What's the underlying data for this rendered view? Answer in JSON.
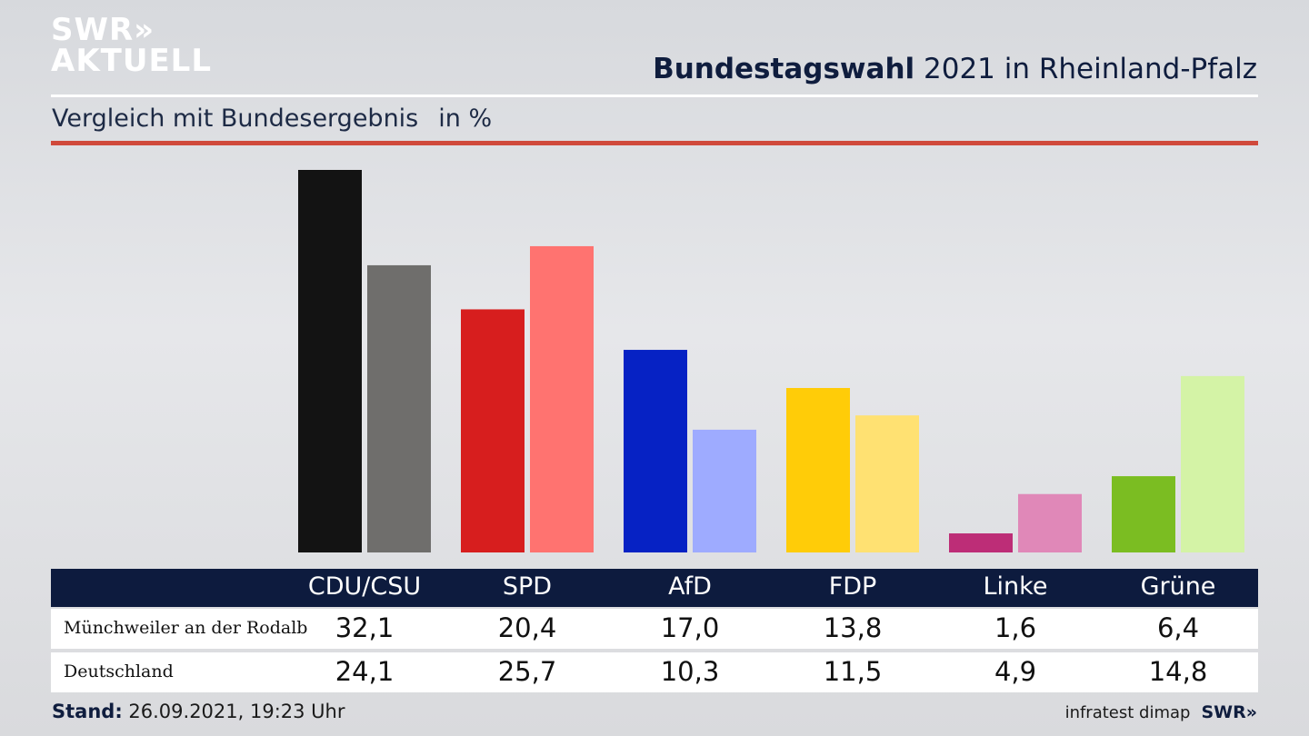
{
  "branding": {
    "logo_line1": "SWR»",
    "logo_line2": "AKTUELL",
    "footer_logo": "SWR»"
  },
  "header": {
    "title_bold": "Bundestagswahl",
    "title_rest": " 2021 in Rheinland-Pfalz",
    "subtitle": "Vergleich mit Bundesergebnis",
    "unit": "in %"
  },
  "colors": {
    "accent_red": "#d0493b",
    "header_navy": "#0d1b3e"
  },
  "chart_data": {
    "type": "bar",
    "categories": [
      "CDU/CSU",
      "SPD",
      "AfD",
      "FDP",
      "Linke",
      "Grüne"
    ],
    "series": [
      {
        "name": "Münchweiler an der Rodalb",
        "values": [
          32.1,
          20.4,
          17.0,
          13.8,
          1.6,
          6.4
        ],
        "colors": [
          "#131313",
          "#d71e1e",
          "#0622c4",
          "#ffcc08",
          "#bd2d77",
          "#7bbd22"
        ]
      },
      {
        "name": "Deutschland",
        "values": [
          24.1,
          25.7,
          10.3,
          11.5,
          4.9,
          14.8
        ],
        "colors": [
          "#6f6e6c",
          "#ff7370",
          "#9eabff",
          "#ffe172",
          "#e088b8",
          "#d4f3a6"
        ]
      }
    ],
    "ylim": [
      0,
      32.1
    ],
    "grid": false,
    "legend": "table-below"
  },
  "table": {
    "headers": [
      "CDU/CSU",
      "SPD",
      "AfD",
      "FDP",
      "Linke",
      "Grüne"
    ],
    "rows": [
      {
        "label": "Münchweiler an der Rodalb",
        "values": [
          "32,1",
          "20,4",
          "17,0",
          "13,8",
          "1,6",
          "6,4"
        ]
      },
      {
        "label": "Deutschland",
        "values": [
          "24,1",
          "25,7",
          "10,3",
          "11,5",
          "4,9",
          "14,8"
        ]
      }
    ]
  },
  "footer": {
    "stand_label": "Stand:",
    "stand_value": " 26.09.2021, 19:23 Uhr",
    "source": "infratest dimap"
  }
}
